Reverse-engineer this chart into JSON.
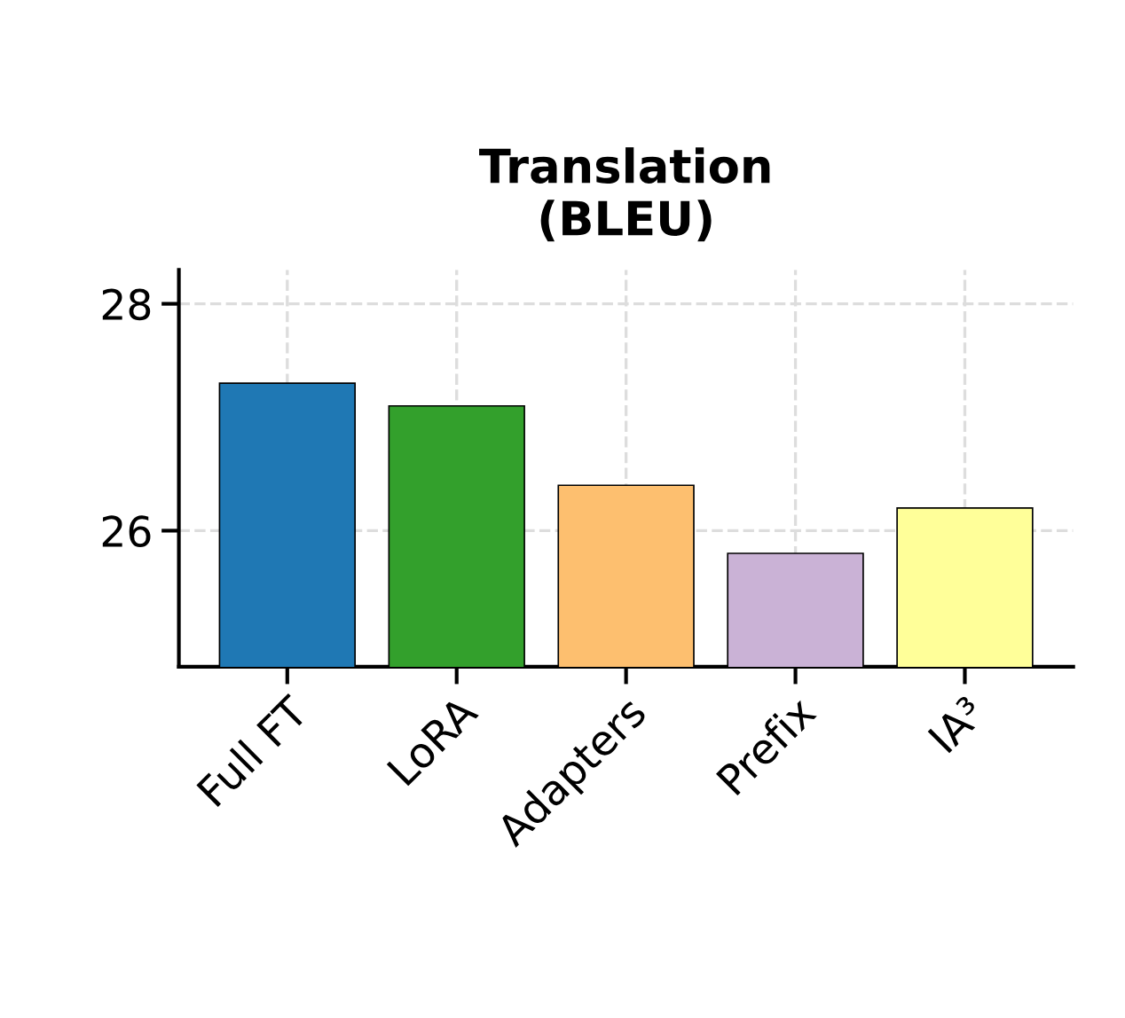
{
  "chart_data": {
    "type": "bar",
    "title": "Translation\n(BLEU)",
    "categories": [
      "Full FT",
      "LoRA",
      "Adapters",
      "Prefix",
      "IA³"
    ],
    "values": [
      27.3,
      27.1,
      26.4,
      25.8,
      26.2
    ],
    "colors": [
      "#1f78b4",
      "#33a02c",
      "#fdbf6f",
      "#cab2d6",
      "#ffff99"
    ],
    "ylim": [
      24.8,
      28.3
    ],
    "yticks": [
      26,
      28
    ],
    "grid": true
  }
}
